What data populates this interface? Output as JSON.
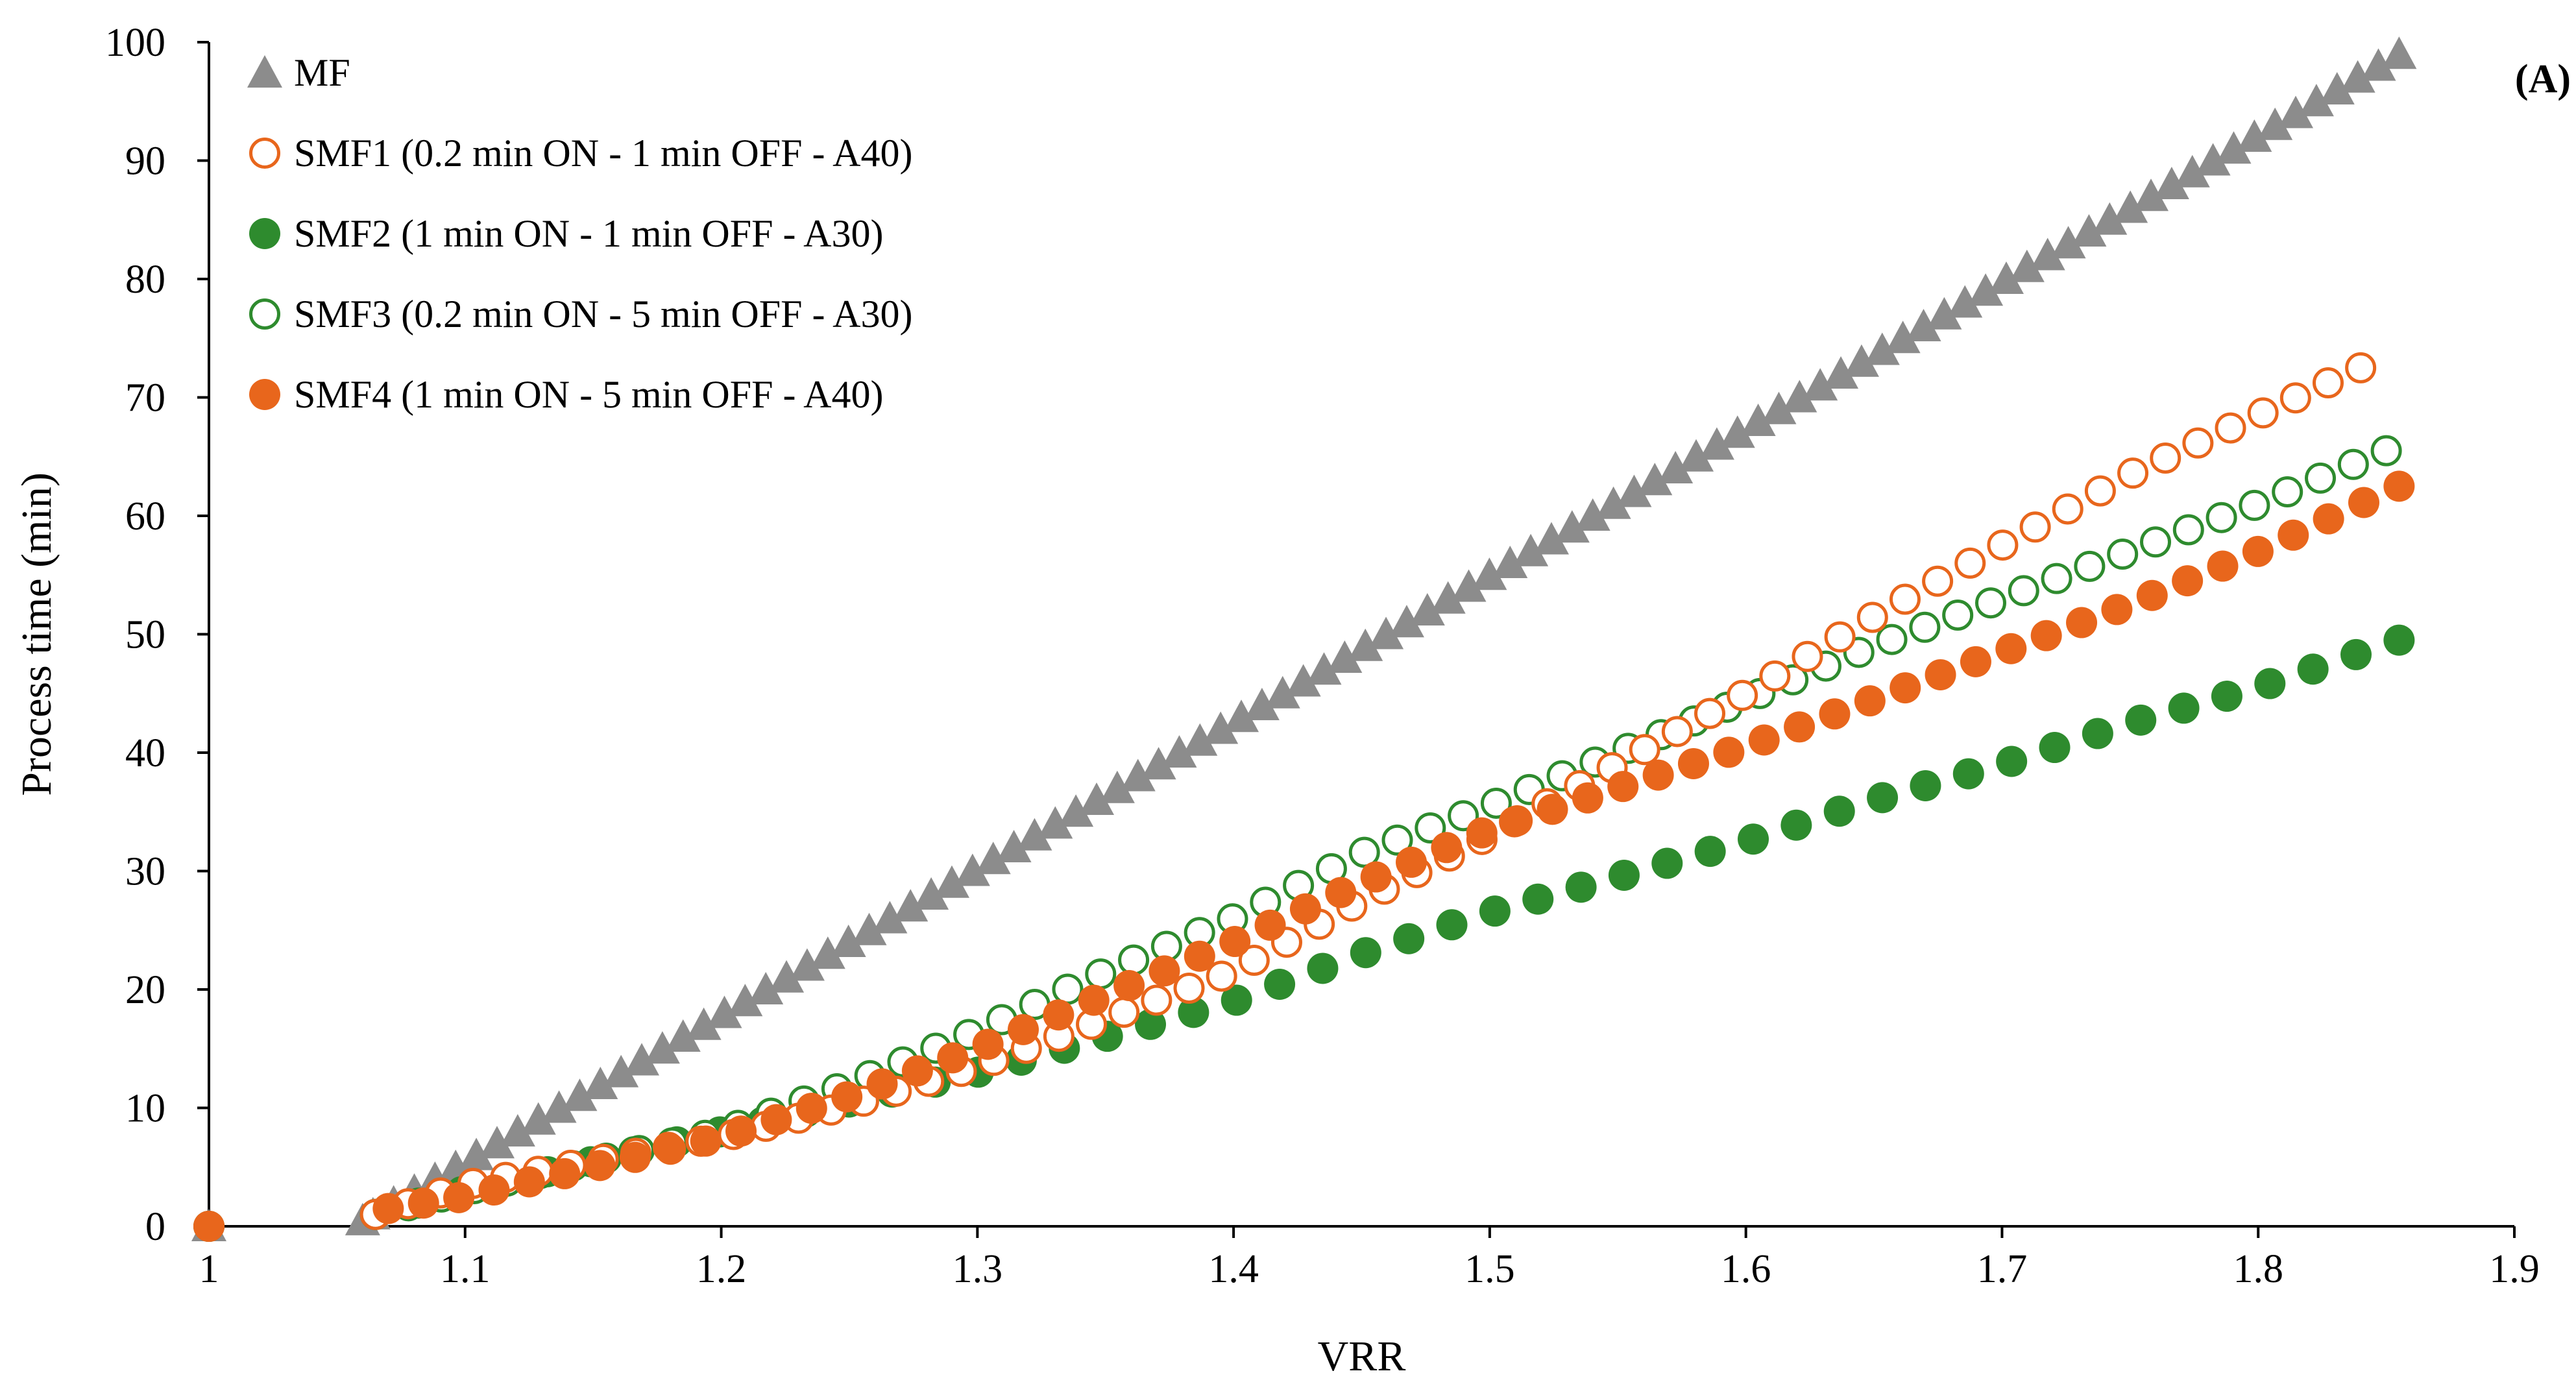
{
  "chart_data": {
    "type": "scatter",
    "title": "",
    "panel_label": "(A)",
    "xlabel": "VRR",
    "ylabel": "Process time (min)",
    "xlim": [
      1,
      1.9
    ],
    "ylim": [
      0,
      100
    ],
    "xticks": [
      "1",
      "1.1",
      "1.2",
      "1.3",
      "1.4",
      "1.5",
      "1.6",
      "1.7",
      "1.8",
      "1.9"
    ],
    "yticks": [
      "0",
      "10",
      "20",
      "30",
      "40",
      "50",
      "60",
      "70",
      "80",
      "90",
      "100"
    ],
    "grid": false,
    "legend_position": "top-left",
    "colors": {
      "orange": "#E8661C",
      "green": "#2E8B2E",
      "gray": "#8C8C8C"
    },
    "series": [
      {
        "key": "mf",
        "name": "MF",
        "marker": "triangle",
        "fill": "filled",
        "color": "#8C8C8C",
        "x": [
          1.0,
          1.06,
          1.855
        ],
        "y": [
          0,
          0.5,
          99
        ],
        "sampling": "linear-time-1min"
      },
      {
        "key": "smf1",
        "name": "SMF1 (0.2 min ON - 1 min OFF - A40)",
        "marker": "circle",
        "fill": "open",
        "color": "#E8661C",
        "x": [
          1.0,
          1.065,
          1.1,
          1.2,
          1.25,
          1.3,
          1.35,
          1.4,
          1.45,
          1.5,
          1.55,
          1.6,
          1.65,
          1.7,
          1.75,
          1.8,
          1.84
        ],
        "y": [
          0,
          1.0,
          3.5,
          7.5,
          10.2,
          13.5,
          17.5,
          21.5,
          27.5,
          33,
          39,
          45,
          51.5,
          57.5,
          63.5,
          68.5,
          72.5
        ],
        "count": 62
      },
      {
        "key": "smf2",
        "name": "SMF2 (1 min ON - 1 min OFF - A30)",
        "marker": "circle",
        "fill": "filled",
        "color": "#2E8B2E",
        "x": [
          1.0,
          1.065,
          1.1,
          1.2,
          1.25,
          1.3,
          1.35,
          1.4,
          1.45,
          1.5,
          1.55,
          1.6,
          1.65,
          1.7,
          1.75,
          1.8,
          1.855
        ],
        "y": [
          0,
          1.0,
          3.0,
          8.0,
          10.5,
          13.0,
          16.0,
          19.0,
          23.0,
          26.5,
          29.5,
          32.5,
          36.0,
          39.0,
          42.5,
          45.5,
          49.5
        ],
        "count": 48
      },
      {
        "key": "smf3",
        "name": "SMF3 (0.2 min ON - 5 min OFF - A30)",
        "marker": "circle",
        "fill": "open",
        "color": "#2E8B2E",
        "x": [
          1.0,
          1.065,
          1.1,
          1.2,
          1.25,
          1.3,
          1.35,
          1.4,
          1.45,
          1.5,
          1.55,
          1.6,
          1.65,
          1.7,
          1.75,
          1.8,
          1.85
        ],
        "y": [
          0,
          1.0,
          3.0,
          8.0,
          12.0,
          16.5,
          21.5,
          26.0,
          31.5,
          35.5,
          40.0,
          44.5,
          49.0,
          53.0,
          57.0,
          61.0,
          65.5
        ],
        "count": 62
      },
      {
        "key": "smf4",
        "name": "SMF4 (1 min ON - 5 min OFF - A40)",
        "marker": "circle",
        "fill": "filled",
        "color": "#E8661C",
        "x": [
          1.0,
          1.07,
          1.1,
          1.2,
          1.25,
          1.3,
          1.35,
          1.4,
          1.45,
          1.5,
          1.55,
          1.6,
          1.65,
          1.7,
          1.75,
          1.8,
          1.855
        ],
        "y": [
          0,
          1.5,
          2.5,
          7.5,
          11.0,
          15.0,
          19.5,
          24.0,
          29.0,
          33.5,
          37.0,
          40.5,
          44.5,
          48.5,
          52.5,
          57.0,
          62.5
        ],
        "count": 58
      }
    ]
  }
}
